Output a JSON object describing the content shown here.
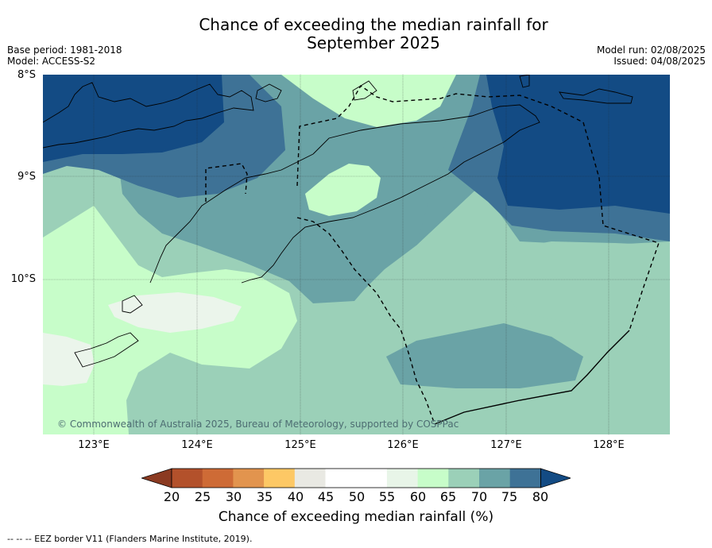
{
  "title_line1": "Chance of exceeding the median rainfall for",
  "title_line2": "September 2025",
  "base_period": "Base period: 1981-2018",
  "model": "Model: ACCESS-S2",
  "model_run": "Model run: 02/08/2025",
  "issued": "Issued: 04/08/2025",
  "lat_labels": [
    "8°S",
    "9°S",
    "10°S"
  ],
  "lon_labels": [
    "123°E",
    "124°E",
    "125°E",
    "126°E",
    "127°E",
    "128°E"
  ],
  "copyright": "© Commonwealth of Australia 2025, Bureau of Meteorology, supported by COSPPac",
  "colorbar": {
    "ticks": [
      "20",
      "25",
      "30",
      "35",
      "40",
      "45",
      "50",
      "55",
      "60",
      "65",
      "70",
      "75",
      "80"
    ],
    "label": "Chance of exceeding median rainfall (%)",
    "colors": [
      "#8b3a21",
      "#b3512b",
      "#ce6b36",
      "#e2944e",
      "#fdc865",
      "#e9e9e3",
      "#ffffff",
      "#ffffff",
      "#e8f5e8",
      "#c7fdc9",
      "#9bd0b8",
      "#6aa3a6",
      "#3e7296",
      "#134b84"
    ]
  },
  "map_colors": {
    "c55_60": "#ebf5eb",
    "c60_65": "#c7fdc9",
    "c65_70": "#9bd0b8",
    "c70_75": "#6aa3a6",
    "c75_80": "#3e7296",
    "c80": "#134b84"
  },
  "footnote": "--  --  -- EEZ border V11 (Flanders Marine Institute, 2019)."
}
